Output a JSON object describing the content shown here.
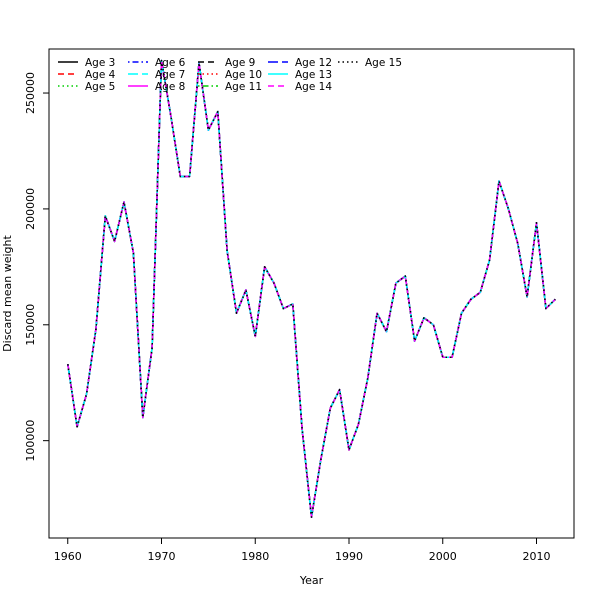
{
  "chart_data": {
    "type": "line",
    "title": "",
    "xlabel": "Year",
    "ylabel": "Discard mean weight",
    "xlim": [
      1958,
      2014
    ],
    "ylim": [
      58000,
      269000
    ],
    "x_ticks": [
      1960,
      1970,
      1980,
      1990,
      2000,
      2010
    ],
    "y_ticks": [
      100000,
      150000,
      200000,
      250000
    ],
    "grid": false,
    "legend_position": "top-left",
    "x": [
      1960,
      1961,
      1962,
      1963,
      1964,
      1965,
      1966,
      1967,
      1968,
      1969,
      1970,
      1971,
      1972,
      1973,
      1974,
      1975,
      1976,
      1977,
      1978,
      1979,
      1980,
      1981,
      1982,
      1983,
      1984,
      1985,
      1986,
      1987,
      1988,
      1989,
      1990,
      1991,
      1992,
      1993,
      1994,
      1995,
      1996,
      1997,
      1998,
      1999,
      2000,
      2001,
      2002,
      2003,
      2004,
      2005,
      2006,
      2007,
      2008,
      2009,
      2010,
      2011,
      2012
    ],
    "series": [
      {
        "name": "Age 3",
        "color": "#000000",
        "dash": "solid"
      },
      {
        "name": "Age 4",
        "color": "#ff0000",
        "dash": "dashed"
      },
      {
        "name": "Age 5",
        "color": "#00cd00",
        "dash": "dotted"
      },
      {
        "name": "Age 6",
        "color": "#0000ff",
        "dash": "dotdash"
      },
      {
        "name": "Age 7",
        "color": "#00ffff",
        "dash": "longdash"
      },
      {
        "name": "Age 8",
        "color": "#ff00ff",
        "dash": "solid"
      },
      {
        "name": "Age 9",
        "color": "#000000",
        "dash": "dashed"
      },
      {
        "name": "Age 10",
        "color": "#ff0000",
        "dash": "dotted"
      },
      {
        "name": "Age 11",
        "color": "#00cd00",
        "dash": "dotdash"
      },
      {
        "name": "Age 12",
        "color": "#0000ff",
        "dash": "longdash"
      },
      {
        "name": "Age 13",
        "color": "#00ffff",
        "dash": "solid"
      },
      {
        "name": "Age 14",
        "color": "#ff00ff",
        "dash": "dashed"
      },
      {
        "name": "Age 15",
        "color": "#000000",
        "dash": "dotted"
      }
    ],
    "values": [
      133000,
      106000,
      120000,
      148000,
      197000,
      186000,
      203000,
      181000,
      110000,
      140000,
      264000,
      240000,
      214000,
      214000,
      263000,
      234000,
      242000,
      182000,
      155000,
      165000,
      145000,
      175000,
      168000,
      157000,
      159000,
      105000,
      67000,
      92000,
      114000,
      122000,
      96000,
      107000,
      127000,
      155000,
      147000,
      168000,
      171000,
      143000,
      153000,
      150000,
      136000,
      136000,
      155000,
      161000,
      164000,
      178000,
      212000,
      200000,
      185000,
      162000,
      194000,
      157000,
      161000
    ]
  }
}
